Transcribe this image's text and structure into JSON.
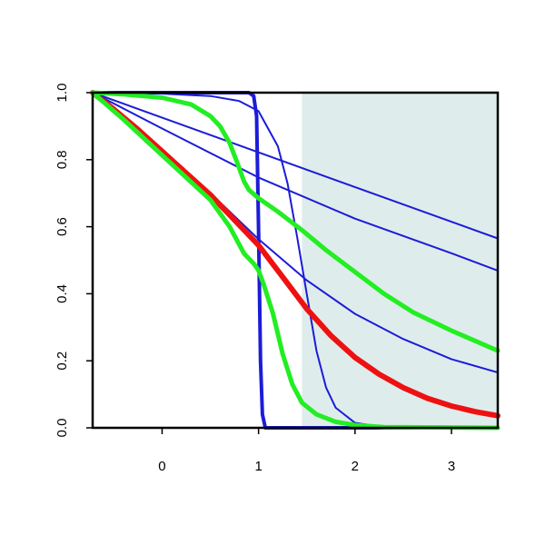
{
  "chart_data": {
    "type": "line",
    "title": "",
    "xlabel": "",
    "ylabel": "",
    "xlim": [
      -0.72,
      3.48
    ],
    "ylim": [
      0,
      1
    ],
    "grid": false,
    "legend": "none",
    "x_ticks": [
      0,
      1,
      2,
      3
    ],
    "y_ticks": [
      0,
      0.2,
      0.4,
      0.6,
      0.8,
      1
    ],
    "x_tick_labels": [
      "0",
      "1",
      "2",
      "3"
    ],
    "y_tick_labels": [
      "0.0",
      "0.2",
      "0.4",
      "0.6",
      "0.8",
      "1.0"
    ],
    "shaded_region": {
      "x_from": 1.45,
      "x_to": 3.48,
      "color": "#dfecec"
    },
    "series": [
      {
        "color": "#1c1cd8",
        "width": 2,
        "points": [
          [
            -0.72,
            1.0
          ],
          [
            3.48,
            0.565
          ]
        ]
      },
      {
        "color": "#1c1cd8",
        "width": 2,
        "points": [
          [
            -0.72,
            1.0
          ],
          [
            0,
            0.893
          ],
          [
            1,
            0.747
          ],
          [
            2,
            0.624
          ],
          [
            3,
            0.521
          ],
          [
            3.48,
            0.469
          ]
        ]
      },
      {
        "color": "#1c1cd8",
        "width": 2,
        "points": [
          [
            -0.72,
            1.0
          ],
          [
            -0.3,
            0.9
          ],
          [
            0,
            0.82
          ],
          [
            0.5,
            0.7
          ],
          [
            1,
            0.563
          ],
          [
            1.5,
            0.44
          ],
          [
            2,
            0.34
          ],
          [
            2.5,
            0.265
          ],
          [
            3,
            0.205
          ],
          [
            3.48,
            0.165
          ]
        ]
      },
      {
        "color": "#1c1cd8",
        "width": 2,
        "points": [
          [
            -0.72,
            1.0
          ],
          [
            0,
            0.997
          ],
          [
            0.5,
            0.99
          ],
          [
            0.8,
            0.975
          ],
          [
            1,
            0.945
          ],
          [
            1.2,
            0.84
          ],
          [
            1.3,
            0.73
          ],
          [
            1.4,
            0.57
          ],
          [
            1.5,
            0.4
          ],
          [
            1.6,
            0.23
          ],
          [
            1.7,
            0.12
          ],
          [
            1.8,
            0.06
          ],
          [
            2.0,
            0.015
          ],
          [
            2.3,
            0.002
          ],
          [
            3.48,
            0.0
          ]
        ]
      },
      {
        "color": "#1c1cd8",
        "width": 4,
        "points": [
          [
            -0.72,
            1.0
          ],
          [
            0.9,
            1.0
          ],
          [
            0.95,
            0.99
          ],
          [
            0.98,
            0.93
          ],
          [
            1.0,
            0.6
          ],
          [
            1.02,
            0.2
          ],
          [
            1.04,
            0.04
          ],
          [
            1.07,
            0.0
          ],
          [
            3.48,
            0.0
          ]
        ]
      },
      {
        "color": "#ee1111",
        "width": 6,
        "points": [
          [
            -0.72,
            1.0
          ],
          [
            -0.5,
            0.95
          ],
          [
            -0.25,
            0.89
          ],
          [
            0,
            0.825
          ],
          [
            0.25,
            0.76
          ],
          [
            0.5,
            0.695
          ],
          [
            0.75,
            0.62
          ],
          [
            1,
            0.545
          ],
          [
            1.25,
            0.45
          ],
          [
            1.5,
            0.355
          ],
          [
            1.75,
            0.275
          ],
          [
            2,
            0.21
          ],
          [
            2.25,
            0.16
          ],
          [
            2.5,
            0.12
          ],
          [
            2.75,
            0.088
          ],
          [
            3,
            0.065
          ],
          [
            3.25,
            0.048
          ],
          [
            3.48,
            0.036
          ]
        ]
      },
      {
        "color": "#22ee22",
        "width": 5,
        "points": [
          [
            -0.72,
            1.0
          ],
          [
            -0.4,
            0.995
          ],
          [
            0,
            0.985
          ],
          [
            0.3,
            0.965
          ],
          [
            0.5,
            0.93
          ],
          [
            0.6,
            0.9
          ],
          [
            0.7,
            0.85
          ],
          [
            0.78,
            0.79
          ],
          [
            0.85,
            0.735
          ],
          [
            0.9,
            0.71
          ],
          [
            1,
            0.685
          ],
          [
            1.2,
            0.645
          ],
          [
            1.45,
            0.59
          ],
          [
            1.7,
            0.53
          ],
          [
            2,
            0.465
          ],
          [
            2.3,
            0.4
          ],
          [
            2.6,
            0.345
          ],
          [
            3,
            0.29
          ],
          [
            3.48,
            0.23
          ]
        ]
      },
      {
        "color": "#22ee22",
        "width": 5,
        "points": [
          [
            -0.72,
            1.0
          ],
          [
            -0.4,
            0.92
          ],
          [
            -0.1,
            0.84
          ],
          [
            0.2,
            0.76
          ],
          [
            0.5,
            0.68
          ],
          [
            0.7,
            0.6
          ],
          [
            0.85,
            0.52
          ],
          [
            0.95,
            0.49
          ],
          [
            1.0,
            0.47
          ],
          [
            1.05,
            0.43
          ],
          [
            1.15,
            0.34
          ],
          [
            1.25,
            0.22
          ],
          [
            1.35,
            0.13
          ],
          [
            1.45,
            0.075
          ],
          [
            1.6,
            0.04
          ],
          [
            1.8,
            0.018
          ],
          [
            2.0,
            0.008
          ],
          [
            2.3,
            0.002
          ],
          [
            3.48,
            0.0
          ]
        ]
      }
    ]
  }
}
